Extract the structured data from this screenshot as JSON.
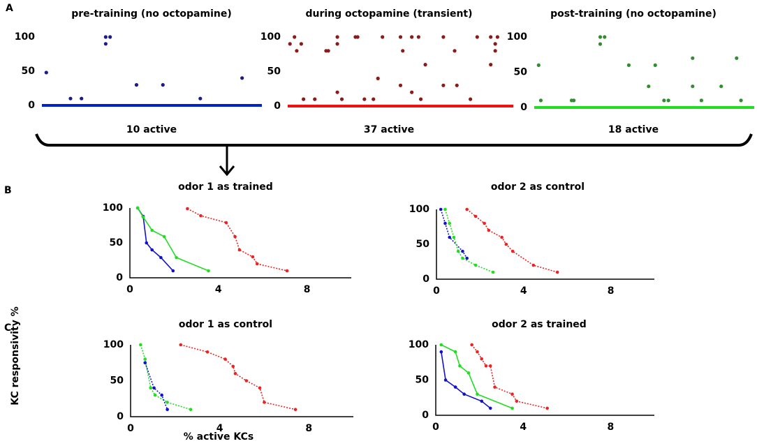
{
  "figure": {
    "panel_labels": [
      "A",
      "B",
      "C"
    ],
    "ylabel": "KC responsivity %",
    "xlabel": "% active KCs"
  },
  "chart_data": [
    {
      "type": "scatter",
      "title": "pre-training (no octopamine)",
      "caption": "10 active",
      "color": "#0022cc",
      "marker_color": "#1a1a8c",
      "x": [
        2,
        13,
        18,
        29,
        31,
        29,
        43,
        55,
        72,
        91
      ],
      "values": [
        48,
        10,
        10,
        100,
        100,
        90,
        30,
        30,
        10,
        40
      ],
      "xlim": [
        0,
        100
      ],
      "ylim": [
        0,
        100
      ],
      "yticks": [
        0,
        50,
        100
      ]
    },
    {
      "type": "scatter",
      "title": "during octopamine (transient)",
      "caption": "37 active",
      "color": "#ee1111",
      "marker_color": "#8b1a1a",
      "x": [
        1,
        3,
        4,
        6,
        7,
        12,
        18,
        17,
        22,
        22,
        22,
        30,
        31,
        34,
        38,
        40,
        42,
        50,
        51,
        50,
        55,
        55,
        58,
        59,
        61,
        69,
        69,
        74,
        75,
        81,
        84,
        90,
        90,
        93,
        92,
        92,
        24
      ],
      "values": [
        90,
        100,
        80,
        90,
        10,
        10,
        80,
        80,
        20,
        90,
        100,
        100,
        100,
        10,
        10,
        40,
        100,
        100,
        80,
        30,
        100,
        20,
        100,
        10,
        60,
        100,
        30,
        80,
        30,
        10,
        100,
        60,
        100,
        100,
        80,
        90,
        10
      ],
      "xlim": [
        0,
        100
      ],
      "ylim": [
        0,
        100
      ],
      "yticks": [
        0,
        50,
        100
      ]
    },
    {
      "type": "scatter",
      "title": "post-training (no octopamine)",
      "caption": "18 active",
      "color": "#22dd22",
      "marker_color": "#2f8f2f",
      "x": [
        2,
        3,
        17,
        18,
        30,
        32,
        30,
        43,
        52,
        55,
        59,
        61,
        72,
        72,
        76,
        85,
        92,
        94
      ],
      "values": [
        60,
        10,
        10,
        10,
        100,
        100,
        90,
        60,
        30,
        60,
        10,
        10,
        70,
        30,
        10,
        30,
        70,
        10
      ],
      "xlim": [
        0,
        100
      ],
      "ylim": [
        0,
        100
      ],
      "yticks": [
        0,
        50,
        100
      ]
    },
    {
      "type": "line",
      "title": "odor 1 as trained",
      "xlim": [
        0,
        10
      ],
      "ylim": [
        0,
        100
      ],
      "xticks": [
        0,
        4,
        8
      ],
      "yticks": [
        0,
        50,
        100
      ],
      "series": [
        {
          "color": "#1111cc",
          "style": "solid",
          "x": [
            0.35,
            0.6,
            0.75,
            1.0,
            1.4,
            1.95
          ],
          "values": [
            100,
            88,
            50,
            40,
            29,
            10
          ]
        },
        {
          "color": "#22dd22",
          "style": "solid",
          "x": [
            0.35,
            0.6,
            1.0,
            1.55,
            2.1,
            3.55
          ],
          "values": [
            100,
            87,
            68,
            59,
            29,
            10
          ]
        },
        {
          "color": "#ee2222",
          "style": "dotted",
          "x": [
            2.6,
            3.2,
            4.35,
            4.75,
            4.95,
            5.55,
            5.75,
            7.1
          ],
          "values": [
            99,
            89,
            79,
            59,
            40,
            30,
            20,
            10
          ]
        }
      ]
    },
    {
      "type": "line",
      "title": "odor 2 as control",
      "xlim": [
        0,
        10
      ],
      "ylim": [
        0,
        100
      ],
      "xticks": [
        0,
        4,
        8
      ],
      "yticks": [
        0,
        50,
        100
      ],
      "series": [
        {
          "color": "#1111cc",
          "style": "dotted",
          "x": [
            0.2,
            0.4,
            0.6,
            1.2,
            1.4
          ],
          "values": [
            100,
            80,
            60,
            40,
            30
          ]
        },
        {
          "color": "#22dd22",
          "style": "dotted",
          "x": [
            0.4,
            0.6,
            0.8,
            1.0,
            1.2,
            1.8,
            2.6
          ],
          "values": [
            100,
            80,
            60,
            40,
            30,
            20,
            10
          ]
        },
        {
          "color": "#ee2222",
          "style": "dotted",
          "x": [
            1.4,
            1.8,
            2.2,
            2.4,
            3.0,
            3.2,
            3.5,
            4.45,
            5.55
          ],
          "values": [
            100,
            90,
            80,
            70,
            60,
            50,
            40,
            20,
            10
          ]
        }
      ]
    },
    {
      "type": "line",
      "title": "odor 1 as control",
      "xlim": [
        0,
        10
      ],
      "ylim": [
        0,
        100
      ],
      "xticks": [
        0,
        4,
        8
      ],
      "yticks": [
        0,
        50,
        100
      ],
      "series": [
        {
          "color": "#22dd22",
          "style": "dotted",
          "x": [
            0.45,
            0.65,
            0.9,
            1.1,
            1.65,
            2.7
          ],
          "values": [
            100,
            80,
            40,
            30,
            20,
            10
          ]
        },
        {
          "color": "#1111cc",
          "style": "dotted",
          "x": [
            0.65,
            1.05,
            1.4,
            1.65
          ],
          "values": [
            75,
            40,
            30,
            10
          ]
        },
        {
          "color": "#ee2222",
          "style": "dotted",
          "x": [
            2.25,
            3.45,
            4.25,
            4.6,
            4.7,
            5.2,
            5.8,
            6.0,
            7.4
          ],
          "values": [
            100,
            90,
            80,
            70,
            60,
            50,
            40,
            20,
            10
          ]
        }
      ]
    },
    {
      "type": "line",
      "title": "odor 2 as trained",
      "xlim": [
        0,
        10
      ],
      "ylim": [
        0,
        100
      ],
      "xticks": [
        0,
        4,
        8
      ],
      "yticks": [
        0,
        50,
        100
      ],
      "series": [
        {
          "color": "#1111cc",
          "style": "solid",
          "x": [
            0.25,
            0.45,
            0.9,
            1.3,
            2.1,
            2.5
          ],
          "values": [
            90,
            50,
            40,
            30,
            20,
            10
          ]
        },
        {
          "color": "#22dd22",
          "style": "solid",
          "x": [
            0.25,
            0.9,
            1.1,
            1.5,
            1.9,
            3.5
          ],
          "values": [
            100,
            90,
            70,
            60,
            30,
            10
          ]
        },
        {
          "color": "#ee2222",
          "style": "dotted",
          "x": [
            1.65,
            1.9,
            2.1,
            2.3,
            2.5,
            2.7,
            3.5,
            3.7,
            5.1
          ],
          "values": [
            100,
            90,
            80,
            70,
            70,
            40,
            30,
            20,
            10
          ]
        }
      ]
    }
  ]
}
